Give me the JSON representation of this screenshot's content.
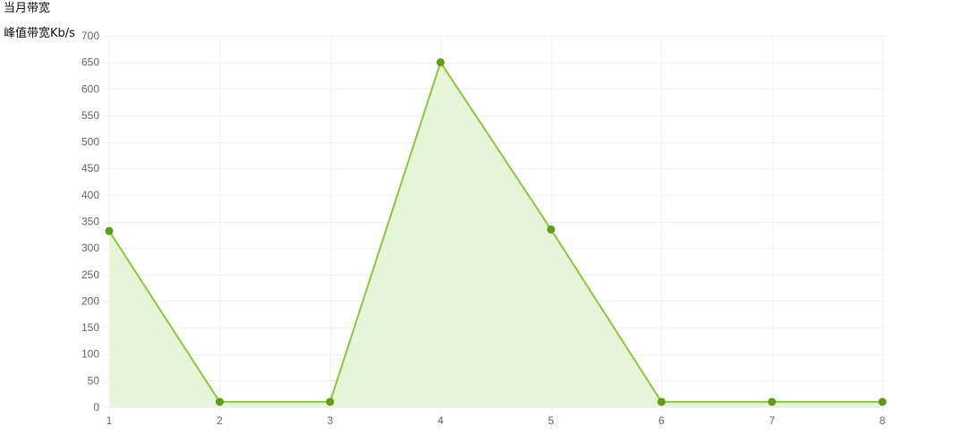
{
  "page": {
    "title": "当月带宽"
  },
  "chart_data": {
    "type": "area",
    "title": "",
    "xlabel": "",
    "ylabel": "峰值带宽Kb/s",
    "x": [
      1,
      2,
      3,
      4,
      5,
      6,
      7,
      8
    ],
    "xticks": [
      1,
      2,
      3,
      4,
      5,
      6,
      7,
      8
    ],
    "ylim": [
      0,
      700
    ],
    "yticks": [
      0,
      50,
      100,
      150,
      200,
      250,
      300,
      350,
      400,
      450,
      500,
      550,
      600,
      650,
      700
    ],
    "grid": true,
    "legend": "none",
    "series": [
      {
        "values": [
          332,
          10,
          10,
          650,
          335,
          10,
          10,
          10
        ],
        "line_color": "#8dc63f",
        "fill_color": "#e6f4d8",
        "point_color": "#5d9c1d"
      }
    ]
  }
}
